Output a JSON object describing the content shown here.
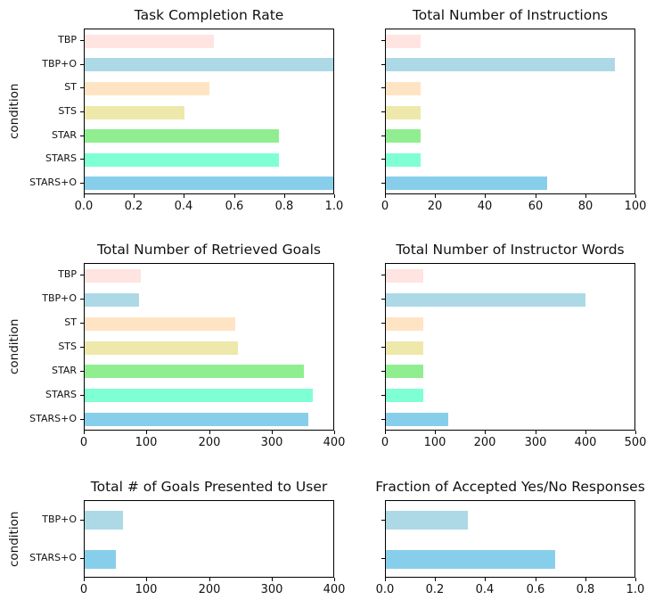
{
  "figure": {
    "background": "#ffffff",
    "text_color": "#111111",
    "condition_colors": {
      "TBP": "#ffe4e1",
      "TBP+O": "#add8e6",
      "ST": "#ffe4c4",
      "STS": "#eee8aa",
      "STAR": "#90ee90",
      "STARS": "#7fffd4",
      "STARS+O": "#87ceeb"
    }
  },
  "chart_data": [
    {
      "type": "bar",
      "orientation": "horizontal",
      "title": "Task Completion Rate",
      "ylabel": "condition",
      "categories": [
        "TBP",
        "TBP+O",
        "ST",
        "STS",
        "STAR",
        "STARS",
        "STARS+O"
      ],
      "show_category_labels": true,
      "values": [
        0.52,
        1.0,
        0.5,
        0.4,
        0.78,
        0.78,
        1.0
      ],
      "colors": [
        "#ffe4e1",
        "#add8e6",
        "#ffe4c4",
        "#eee8aa",
        "#90ee90",
        "#7fffd4",
        "#87ceeb"
      ],
      "xlim": [
        0,
        1
      ],
      "xticks": [
        "0.0",
        "0.2",
        "0.4",
        "0.6",
        "0.8",
        "1.0"
      ],
      "grid": false
    },
    {
      "type": "bar",
      "orientation": "horizontal",
      "title": "Total Number of Instructions",
      "ylabel": "",
      "categories": [
        "TBP",
        "TBP+O",
        "ST",
        "STS",
        "STAR",
        "STARS",
        "STARS+O"
      ],
      "show_category_labels": false,
      "values": [
        14,
        92,
        14,
        14,
        14,
        14,
        65
      ],
      "colors": [
        "#ffe4e1",
        "#add8e6",
        "#ffe4c4",
        "#eee8aa",
        "#90ee90",
        "#7fffd4",
        "#87ceeb"
      ],
      "xlim": [
        0,
        100
      ],
      "xticks": [
        "0",
        "20",
        "40",
        "60",
        "80",
        "100"
      ],
      "grid": false
    },
    {
      "type": "bar",
      "orientation": "horizontal",
      "title": "Total Number of Retrieved Goals",
      "ylabel": "condition",
      "categories": [
        "TBP",
        "TBP+O",
        "ST",
        "STS",
        "STAR",
        "STARS",
        "STARS+O"
      ],
      "show_category_labels": true,
      "values": [
        91,
        88,
        242,
        246,
        353,
        367,
        360
      ],
      "colors": [
        "#ffe4e1",
        "#add8e6",
        "#ffe4c4",
        "#eee8aa",
        "#90ee90",
        "#7fffd4",
        "#87ceeb"
      ],
      "xlim": [
        0,
        400
      ],
      "xticks": [
        "0",
        "100",
        "200",
        "300",
        "400"
      ],
      "grid": false
    },
    {
      "type": "bar",
      "orientation": "horizontal",
      "title": "Total Number of Instructor Words",
      "ylabel": "",
      "categories": [
        "TBP",
        "TBP+O",
        "ST",
        "STS",
        "STAR",
        "STARS",
        "STARS+O"
      ],
      "show_category_labels": false,
      "values": [
        75,
        402,
        75,
        75,
        75,
        75,
        126
      ],
      "colors": [
        "#ffe4e1",
        "#add8e6",
        "#ffe4c4",
        "#eee8aa",
        "#90ee90",
        "#7fffd4",
        "#87ceeb"
      ],
      "xlim": [
        0,
        500
      ],
      "xticks": [
        "0",
        "100",
        "200",
        "300",
        "400",
        "500"
      ],
      "grid": false
    },
    {
      "type": "bar",
      "orientation": "horizontal",
      "title": "Total # of Goals Presented to User",
      "ylabel": "condition",
      "categories": [
        "TBP+O",
        "STARS+O"
      ],
      "show_category_labels": true,
      "values": [
        62,
        50
      ],
      "colors": [
        "#add8e6",
        "#87ceeb"
      ],
      "xlim": [
        0,
        400
      ],
      "xticks": [
        "0",
        "100",
        "200",
        "300",
        "400"
      ],
      "grid": false
    },
    {
      "type": "bar",
      "orientation": "horizontal",
      "title": "Fraction of Accepted Yes/No Responses",
      "ylabel": "",
      "categories": [
        "TBP+O",
        "STARS+O"
      ],
      "show_category_labels": false,
      "values": [
        0.33,
        0.68
      ],
      "colors": [
        "#add8e6",
        "#87ceeb"
      ],
      "xlim": [
        0,
        1
      ],
      "xticks": [
        "0.0",
        "0.2",
        "0.4",
        "0.6",
        "0.8",
        "1.0"
      ],
      "grid": false
    }
  ]
}
